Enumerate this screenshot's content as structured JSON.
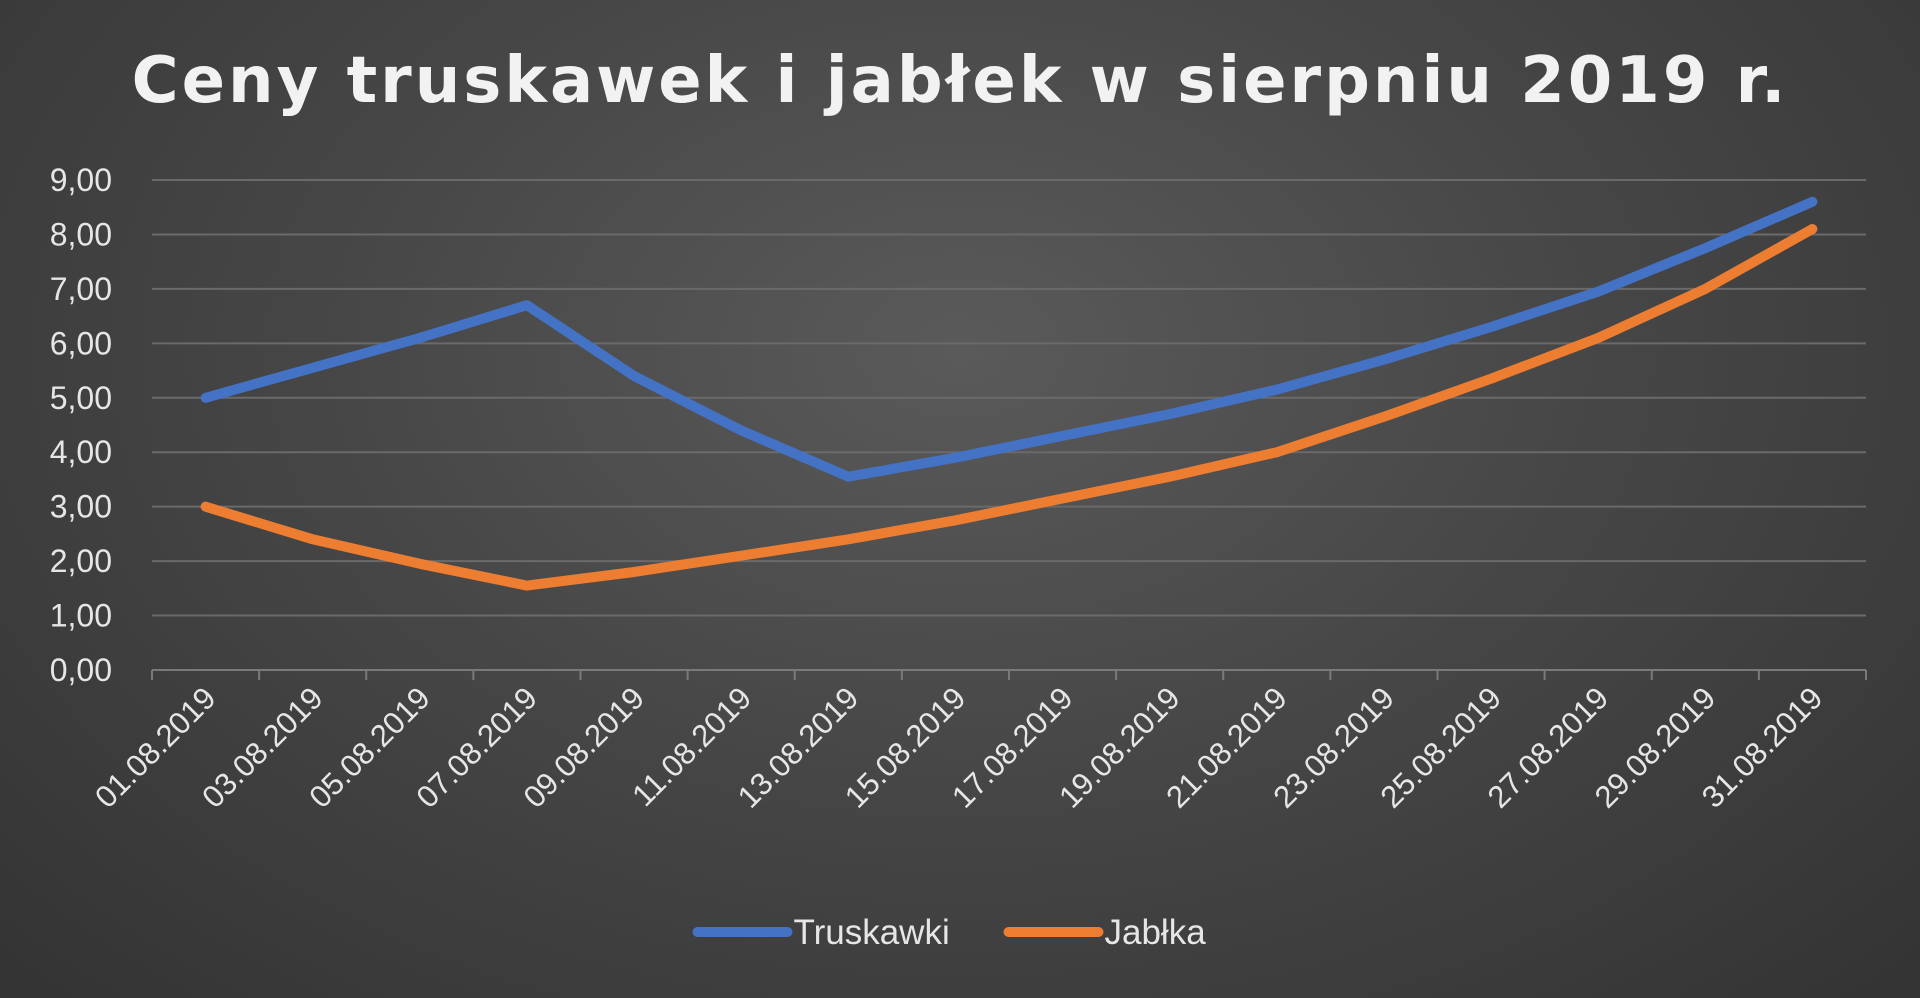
{
  "chart_data": {
    "type": "line",
    "title": "Ceny truskawek i jabłek w sierpniu 2019 r.",
    "xlabel": "",
    "ylabel": "",
    "categories": [
      "01.08.2019",
      "03.08.2019",
      "05.08.2019",
      "07.08.2019",
      "09.08.2019",
      "11.08.2019",
      "13.08.2019",
      "15.08.2019",
      "17.08.2019",
      "19.08.2019",
      "21.08.2019",
      "23.08.2019",
      "25.08.2019",
      "27.08.2019",
      "29.08.2019",
      "31.08.2019"
    ],
    "y_ticks": [
      "0,00",
      "1,00",
      "2,00",
      "3,00",
      "4,00",
      "5,00",
      "6,00",
      "7,00",
      "8,00",
      "9,00"
    ],
    "ylim": [
      0,
      9
    ],
    "grid": true,
    "legend_position": "bottom",
    "series": [
      {
        "name": "Truskawki",
        "color": "#4472c4",
        "values": [
          5.0,
          5.55,
          6.1,
          6.7,
          5.4,
          4.4,
          3.55,
          3.9,
          4.3,
          4.7,
          5.15,
          5.7,
          6.3,
          6.95,
          7.75,
          8.6
        ]
      },
      {
        "name": "Jabłka",
        "color": "#ed7d31",
        "values": [
          3.0,
          2.4,
          1.95,
          1.55,
          1.8,
          2.1,
          2.4,
          2.75,
          3.15,
          3.55,
          4.0,
          4.65,
          5.35,
          6.1,
          7.0,
          8.1
        ]
      }
    ]
  }
}
